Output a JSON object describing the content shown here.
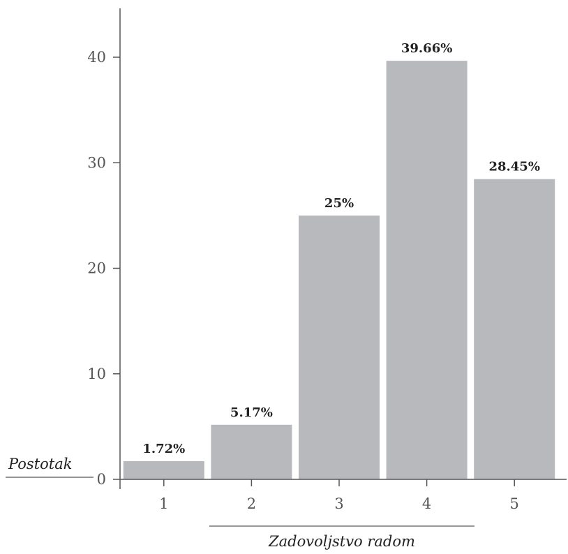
{
  "chart_data": {
    "type": "bar",
    "categories": [
      "1",
      "2",
      "3",
      "4",
      "5"
    ],
    "values": [
      1.72,
      5.17,
      25,
      39.66,
      28.45
    ],
    "value_labels": [
      "1.72%",
      "5.17%",
      "25%",
      "39.66%",
      "28.45%"
    ],
    "yticks": [
      0,
      10,
      20,
      30,
      40
    ],
    "ylim": [
      0,
      45
    ],
    "xlabel": "Zadovoljstvo radom",
    "ylabel": "Postotak",
    "grid": false,
    "colors": {
      "bar": "#b8b9bd",
      "axis": "#555555"
    }
  }
}
